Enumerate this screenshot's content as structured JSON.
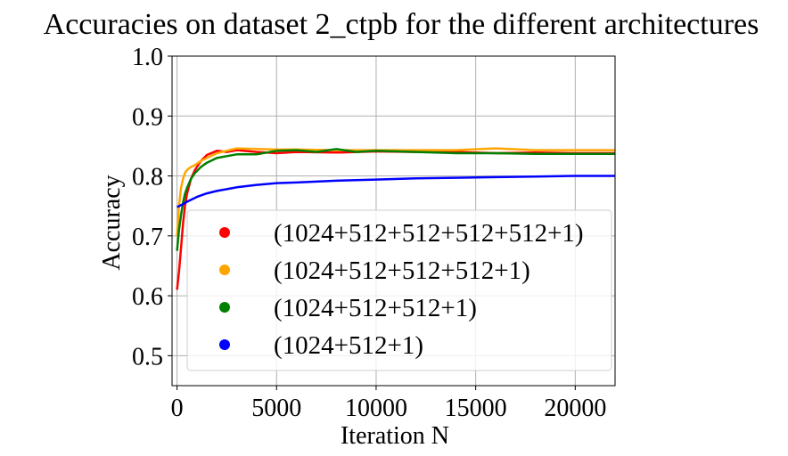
{
  "chart_data": {
    "type": "line",
    "title": "Accuracies on dataset 2_ctpb for the different architectures",
    "xlabel": "Iteration N",
    "ylabel": "Accuracy",
    "xlim": [
      -250,
      22000
    ],
    "ylim": [
      0.45,
      1.0
    ],
    "x_ticks": [
      "0",
      "5000",
      "10000",
      "15000",
      "20000"
    ],
    "x_tick_values": [
      0,
      5000,
      10000,
      15000,
      20000
    ],
    "y_ticks": [
      "0.5",
      "0.6",
      "0.7",
      "0.8",
      "0.9",
      "1.0"
    ],
    "y_tick_values": [
      0.5,
      0.6,
      0.7,
      0.8,
      0.9,
      1.0
    ],
    "grid": true,
    "legend_position": "lower-right",
    "series": [
      {
        "name": "(1024+512+512+512+512+1)",
        "color": "#ff0000",
        "x": [
          0,
          100,
          200,
          300,
          400,
          500,
          700,
          900,
          1200,
          1500,
          2000,
          2500,
          3000,
          4000,
          5000,
          6000,
          8000,
          10000,
          12000,
          14000,
          16000,
          18000,
          20000,
          22000
        ],
        "y": [
          0.61,
          0.64,
          0.68,
          0.72,
          0.75,
          0.77,
          0.795,
          0.81,
          0.825,
          0.835,
          0.842,
          0.84,
          0.843,
          0.84,
          0.838,
          0.84,
          0.839,
          0.841,
          0.84,
          0.84,
          0.838,
          0.839,
          0.838,
          0.838
        ]
      },
      {
        "name": "(1024+512+512+512+1)",
        "color": "#ffa500",
        "x": [
          0,
          100,
          200,
          300,
          400,
          500,
          700,
          900,
          1200,
          1500,
          2000,
          2500,
          3000,
          4000,
          5000,
          6000,
          8000,
          10000,
          12000,
          14000,
          16000,
          18000,
          20000,
          22000
        ],
        "y": [
          0.7,
          0.75,
          0.78,
          0.795,
          0.805,
          0.81,
          0.815,
          0.818,
          0.825,
          0.83,
          0.838,
          0.842,
          0.846,
          0.845,
          0.844,
          0.844,
          0.843,
          0.843,
          0.843,
          0.843,
          0.846,
          0.843,
          0.843,
          0.843
        ]
      },
      {
        "name": "(1024+512+512+1)",
        "color": "#008000",
        "x": [
          0,
          100,
          200,
          300,
          400,
          500,
          700,
          900,
          1200,
          1500,
          2000,
          2500,
          3000,
          4000,
          5000,
          6000,
          7000,
          8000,
          9000,
          10000,
          12000,
          14000,
          16000,
          18000,
          20000,
          22000
        ],
        "y": [
          0.675,
          0.71,
          0.735,
          0.755,
          0.77,
          0.78,
          0.795,
          0.805,
          0.815,
          0.822,
          0.83,
          0.833,
          0.836,
          0.836,
          0.842,
          0.843,
          0.84,
          0.845,
          0.84,
          0.842,
          0.84,
          0.838,
          0.838,
          0.837,
          0.837,
          0.837
        ]
      },
      {
        "name": "(1024+512+1)",
        "color": "#0000ff",
        "x": [
          0,
          250,
          500,
          1000,
          1500,
          2000,
          3000,
          4000,
          5000,
          6000,
          8000,
          10000,
          12000,
          14000,
          16000,
          18000,
          20000,
          22000
        ],
        "y": [
          0.748,
          0.752,
          0.757,
          0.765,
          0.771,
          0.775,
          0.781,
          0.785,
          0.788,
          0.789,
          0.792,
          0.794,
          0.796,
          0.797,
          0.798,
          0.799,
          0.8,
          0.8
        ]
      }
    ]
  }
}
